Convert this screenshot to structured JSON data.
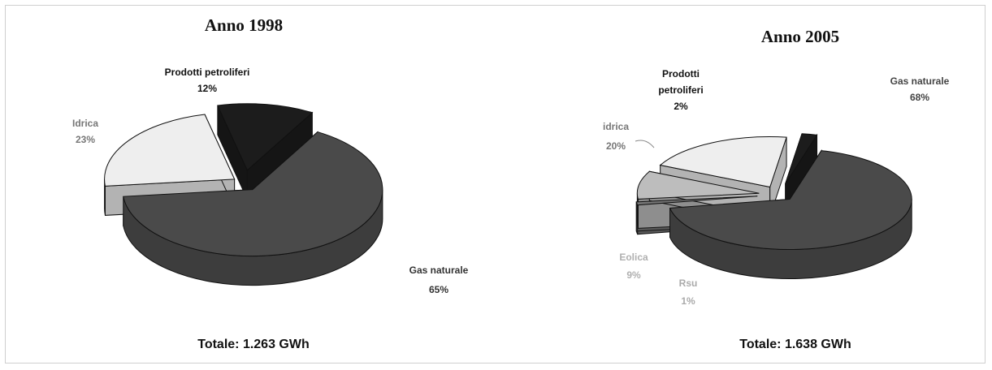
{
  "chart_data": [
    {
      "type": "pie",
      "title": "Anno 1998",
      "total_label": "Totale: 1.263 GWh",
      "slices": [
        {
          "name": "Gas naturale",
          "value": 65,
          "label_value": "65%",
          "color": "#4a4a4a",
          "label_color": "#333333"
        },
        {
          "name": "Idrica",
          "value": 23,
          "label_value": "23%",
          "color": "#eeeeee",
          "label_color": "#777777"
        },
        {
          "name": "Prodotti petroliferi",
          "value": 12,
          "label_value": "12%",
          "color": "#1c1c1c",
          "label_color": "#111111"
        }
      ]
    },
    {
      "type": "pie",
      "title": "Anno 2005",
      "total_label": "Totale: 1.638 GWh",
      "slices": [
        {
          "name": "Gas naturale",
          "value": 68,
          "label_value": "68%",
          "color": "#4a4a4a",
          "label_color": "#444444"
        },
        {
          "name": "Rsu",
          "value": 1,
          "label_value": "1%",
          "color": "#777777",
          "label_color": "#aaaaaa"
        },
        {
          "name": "Eolica",
          "value": 9,
          "label_value": "9%",
          "color": "#bdbdbd",
          "label_color": "#b0b0b0"
        },
        {
          "name": "Idrica",
          "value": 20,
          "label_value": "20%",
          "color": "#eeeeee",
          "label_color": "#777777"
        },
        {
          "name": "Prodotti petroliferi",
          "value": 2,
          "label_value": "2%",
          "color": "#1c1c1c",
          "label_color": "#111111"
        }
      ]
    }
  ]
}
